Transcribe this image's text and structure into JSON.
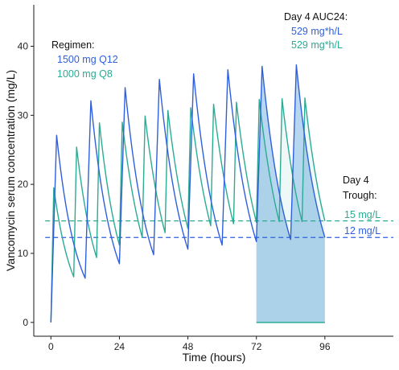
{
  "chart_data": {
    "type": "line",
    "xlabel": "Time (hours)",
    "ylabel": "Vancomycin serum concentration (mg/L)",
    "xlim": [
      -6,
      120
    ],
    "ylim": [
      -2,
      46
    ],
    "x_ticks": [
      0,
      24,
      48,
      72,
      96
    ],
    "y_ticks": [
      0,
      10,
      20,
      30,
      40
    ],
    "grid": false,
    "series": [
      {
        "name": "1500 mg Q12",
        "color": "#2f5fdd",
        "dose_interval_h": 12,
        "peak_time_after_dose_h": 2,
        "points": [
          [
            0,
            0
          ],
          [
            2,
            27.1
          ],
          [
            12,
            6.4
          ],
          [
            14,
            32.1
          ],
          [
            24,
            8.5
          ],
          [
            26,
            34.0
          ],
          [
            36,
            9.8
          ],
          [
            38,
            35.2
          ],
          [
            48,
            10.6
          ],
          [
            50,
            36.0
          ],
          [
            60,
            11.2
          ],
          [
            62,
            36.6
          ],
          [
            72,
            11.7
          ],
          [
            74,
            37.1
          ],
          [
            84,
            12.0
          ],
          [
            86,
            37.3
          ],
          [
            96,
            12.3
          ]
        ]
      },
      {
        "name": "1000 mg Q8",
        "color": "#2bab94",
        "dose_interval_h": 8,
        "peak_time_after_dose_h": 1,
        "points": [
          [
            0,
            0
          ],
          [
            1,
            19.5
          ],
          [
            8,
            6.6
          ],
          [
            9,
            25.4
          ],
          [
            16,
            9.4
          ],
          [
            17,
            28.9
          ],
          [
            24,
            11.2
          ],
          [
            25,
            29.0
          ],
          [
            32,
            12.3
          ],
          [
            33,
            29.9
          ],
          [
            40,
            13.0
          ],
          [
            41,
            30.7
          ],
          [
            48,
            13.6
          ],
          [
            49,
            31.1
          ],
          [
            56,
            14.0
          ],
          [
            57,
            31.6
          ],
          [
            64,
            14.3
          ],
          [
            65,
            31.9
          ],
          [
            72,
            14.5
          ],
          [
            73,
            32.3
          ],
          [
            80,
            14.6
          ],
          [
            81,
            32.4
          ],
          [
            88,
            14.6
          ],
          [
            89,
            32.5
          ],
          [
            96,
            14.7
          ]
        ]
      }
    ],
    "reference_lines": [
      {
        "name": "15 mg/L",
        "y": 14.7,
        "color": "#2bab94",
        "style": "dashed"
      },
      {
        "name": "12 mg/L",
        "y": 12.3,
        "color": "#2f5fdd",
        "style": "dashed"
      }
    ],
    "auc_region": {
      "x_from": 72,
      "x_to": 96,
      "fill": "#b3d4ee"
    },
    "annotations": {
      "regimen_title": "Regimen:",
      "regimen_q12": "1500 mg Q12",
      "regimen_q8": "1000 mg Q8",
      "auc_title": "Day 4 AUC24:",
      "auc_q12": "529 mg*h/L",
      "auc_q8": "529 mg*h/L",
      "trough_title_1": "Day 4",
      "trough_title_2": "Trough:",
      "trough_q8": "15 mg/L",
      "trough_q12": "12 mg/L"
    }
  }
}
